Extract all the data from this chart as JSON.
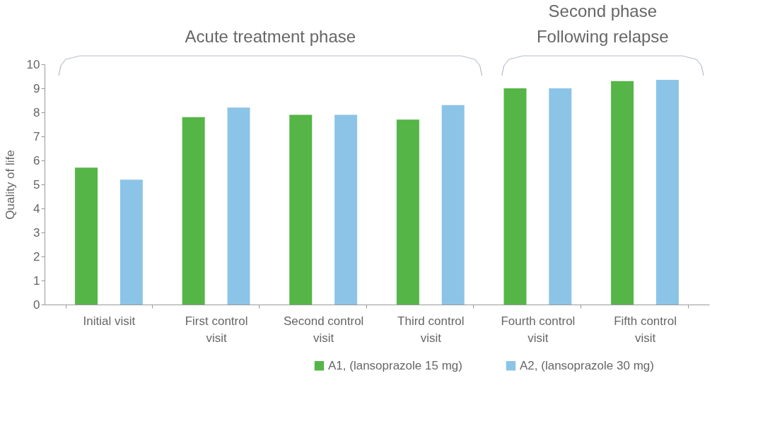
{
  "chart_data": {
    "type": "bar",
    "ylabel": "Quality of life",
    "categories": [
      "Initial visit",
      "First control visit",
      "Second control visit",
      "Third control visit",
      "Fourth control visit",
      "Fifth control visit"
    ],
    "series": [
      {
        "name": "A1, (lansoprazole 15 mg)",
        "color": "#55b547",
        "values": [
          5.7,
          7.8,
          7.9,
          7.7,
          9.0,
          9.3
        ]
      },
      {
        "name": "A2, (lansoprazole 30 mg)",
        "color": "#8cc4e8",
        "values": [
          5.2,
          8.2,
          7.9,
          8.3,
          9.0,
          9.35
        ]
      }
    ],
    "ylim": [
      0,
      10
    ],
    "yticks": [
      0,
      1,
      2,
      3,
      4,
      5,
      6,
      7,
      8,
      9,
      10
    ],
    "grid": false,
    "legend": "bottom right",
    "annotations": [
      "Acute treatment phase",
      "Second phase\nFollowing relapse"
    ]
  }
}
